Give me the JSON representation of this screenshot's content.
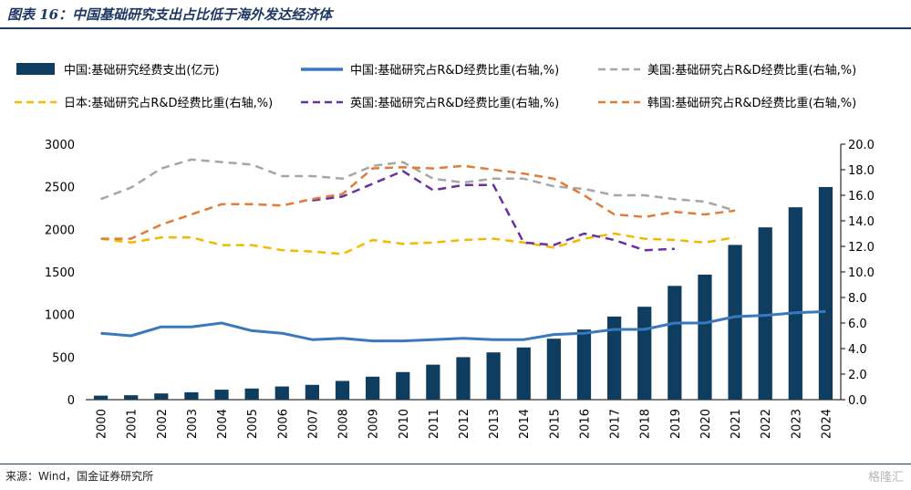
{
  "title": "图表 16：中国基础研究支出占比低于海外发达经济体",
  "source": "来源：Wind，国金证券研究所",
  "watermark": "格隆汇",
  "colors": {
    "bar": "#0e3d5f",
    "china_line": "#3a78bd",
    "usa": "#a6a6a6",
    "japan": "#f5b800",
    "uk": "#6b30a0",
    "korea": "#e07c38",
    "title": "#1f3864"
  },
  "chart_data": {
    "type": "bar",
    "categories": [
      "2000",
      "2001",
      "2002",
      "2003",
      "2004",
      "2005",
      "2006",
      "2007",
      "2008",
      "2009",
      "2010",
      "2011",
      "2012",
      "2013",
      "2014",
      "2015",
      "2016",
      "2017",
      "2018",
      "2019",
      "2020",
      "2021",
      "2022",
      "2023",
      "2024"
    ],
    "left_axis": {
      "ylim": [
        0,
        3000
      ],
      "ticks": [
        "0",
        "500",
        "1000",
        "1500",
        "2000",
        "2500",
        "3000"
      ]
    },
    "right_axis": {
      "ylim": [
        0,
        20
      ],
      "ticks": [
        "0.0",
        "2.0",
        "4.0",
        "6.0",
        "8.0",
        "10.0",
        "12.0",
        "14.0",
        "16.0",
        "18.0",
        "20.0"
      ]
    },
    "legend_position": "top",
    "grid": false,
    "bar_series": {
      "name": "中国:基础研究经费支出(亿元)",
      "values": [
        47,
        52,
        73,
        87,
        117,
        131,
        155,
        174,
        220,
        270,
        324,
        411,
        499,
        555,
        613,
        716,
        823,
        976,
        1091,
        1336,
        1468,
        1817,
        2023,
        2259,
        2497
      ]
    },
    "line_series": [
      {
        "name": "中国:基础研究占R&D经费比重(右轴,%)",
        "style": "solid",
        "color_key": "china_line",
        "values": [
          5.2,
          5.0,
          5.7,
          5.7,
          6.0,
          5.4,
          5.2,
          4.7,
          4.8,
          4.6,
          4.6,
          4.7,
          4.8,
          4.7,
          4.7,
          5.1,
          5.2,
          5.5,
          5.5,
          6.0,
          6.0,
          6.5,
          6.6,
          6.8,
          6.9
        ]
      },
      {
        "name": "美国:基础研究占R&D经费比重(右轴,%)",
        "style": "dashed",
        "color_key": "usa",
        "values": [
          15.7,
          16.6,
          18.1,
          18.8,
          18.6,
          18.4,
          17.5,
          17.5,
          17.3,
          18.3,
          18.6,
          17.3,
          17.0,
          17.3,
          17.3,
          16.7,
          16.5,
          16.0,
          16.0,
          15.7,
          15.5,
          14.8,
          null,
          null,
          null
        ]
      },
      {
        "name": "日本:基础研究占R&D经费比重(右轴,%)",
        "style": "dashed",
        "color_key": "japan",
        "values": [
          12.6,
          12.3,
          12.7,
          12.7,
          12.1,
          12.1,
          11.7,
          11.6,
          11.4,
          12.5,
          12.2,
          12.3,
          12.5,
          12.6,
          12.3,
          11.9,
          12.6,
          13.0,
          12.6,
          12.5,
          12.3,
          12.7,
          null,
          null,
          null
        ]
      },
      {
        "name": "英国:基础研究占R&D经费比重(右轴,%)",
        "style": "dashed",
        "color_key": "uk",
        "values": [
          null,
          null,
          null,
          null,
          null,
          null,
          null,
          15.6,
          15.9,
          16.9,
          17.9,
          16.4,
          16.8,
          16.8,
          12.3,
          12.1,
          13.0,
          12.5,
          11.7,
          11.8,
          null,
          null,
          null,
          null,
          null
        ]
      },
      {
        "name": "韩国:基础研究占R&D经费比重(右轴,%)",
        "style": "dashed",
        "color_key": "korea",
        "values": [
          12.6,
          12.6,
          13.7,
          14.5,
          15.3,
          15.3,
          15.2,
          15.7,
          16.1,
          18.1,
          18.2,
          18.1,
          18.3,
          18.0,
          17.7,
          17.3,
          16.0,
          14.5,
          14.3,
          14.7,
          14.5,
          14.8,
          null,
          null,
          null
        ]
      }
    ]
  }
}
